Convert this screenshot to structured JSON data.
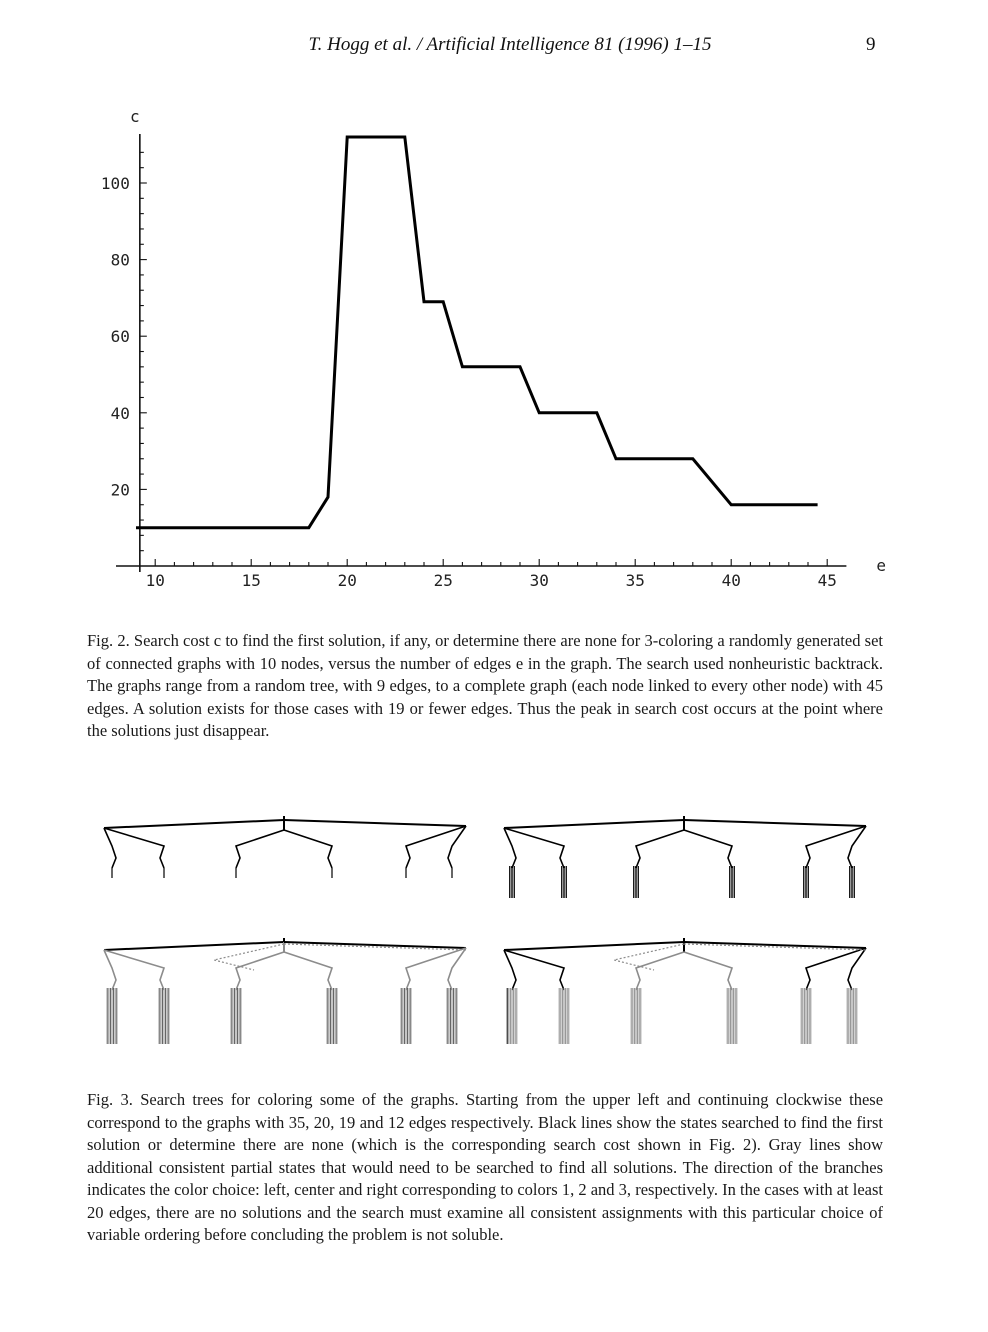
{
  "header": {
    "running_head": "T. Hogg et al. / Artificial Intelligence 81 (1996) 1–15",
    "page_number": "9"
  },
  "chart_data": {
    "type": "line",
    "xlabel": "e",
    "ylabel": "c",
    "xlim": [
      9,
      46
    ],
    "ylim": [
      0,
      112
    ],
    "x_ticks": [
      10,
      15,
      20,
      25,
      30,
      35,
      40,
      45
    ],
    "y_ticks": [
      20,
      40,
      60,
      80,
      100
    ],
    "grid": false,
    "series": [
      {
        "points": [
          [
            9,
            10
          ],
          [
            18,
            10
          ],
          [
            19,
            18
          ],
          [
            20,
            112
          ],
          [
            23,
            112
          ],
          [
            24,
            69
          ],
          [
            25,
            69
          ],
          [
            26,
            52
          ],
          [
            29,
            52
          ],
          [
            30,
            40
          ],
          [
            33,
            40
          ],
          [
            34,
            28
          ],
          [
            38,
            28
          ],
          [
            40,
            16
          ],
          [
            44.5,
            16
          ]
        ]
      }
    ]
  },
  "fig2_caption": {
    "label": "Fig. 2.",
    "text": "Search cost c to find the first solution, if any, or determine there are none for 3-coloring a randomly generated set of connected graphs with 10 nodes, versus the number of edges e in the graph. The search used nonheuristic backtrack. The graphs range from a random tree, with 9 edges, to a complete graph (each node linked to every other node) with 45 edges. A solution exists for those cases with 19 or fewer edges. Thus the peak in search cost occurs at the point where the solutions just disappear."
  },
  "fig3": {
    "black": "#000000",
    "gray": "#8c8c8c"
  },
  "fig3_caption": {
    "label": "Fig. 3.",
    "text": "Search trees for coloring some of the graphs. Starting from the upper left and continuing clockwise these correspond to the graphs with 35, 20, 19 and 12 edges respectively. Black lines show the states searched to find the first solution or determine there are none (which is the corresponding search cost shown in Fig. 2). Gray lines show additional consistent partial states that would need to be searched to find all solutions. The direction of the branches indicates the color choice: left, center and right corresponding to colors 1, 2 and 3, respectively. In the cases with at least 20 edges, there are no solutions and the search must examine all consistent assignments with this particular choice of variable ordering before concluding the problem is not soluble."
  }
}
